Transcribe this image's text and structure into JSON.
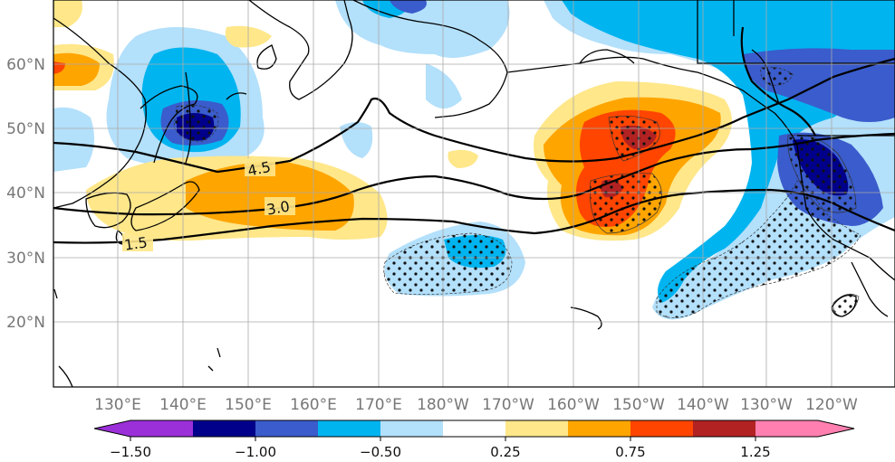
{
  "map": {
    "lon_labels": [
      "130°E",
      "140°E",
      "150°E",
      "160°E",
      "170°E",
      "180°W",
      "170°W",
      "160°W",
      "150°W",
      "140°W",
      "130°W",
      "120°W"
    ],
    "lat_labels": [
      "60°N",
      "50°N",
      "40°N",
      "30°N",
      "20°N"
    ],
    "contour_labels": [
      "4.5",
      "3.0",
      "1.5"
    ],
    "colorbar": {
      "tick_labels": [
        "−1.50",
        "−1.00",
        "−0.50",
        "0.25",
        "0.75",
        "1.25"
      ],
      "colors": [
        "#9b30d9",
        "#00008b",
        "#3a5ccc",
        "#00b4f0",
        "#b3e0fb",
        "#ffffff",
        "#ffe78a",
        "#ffa500",
        "#ff4500",
        "#b22222",
        "#ff7fb0"
      ]
    },
    "fill_colors": {
      "light_blue": "#b3e0fb",
      "blue": "#00b4f0",
      "mid_blue": "#3a5ccc",
      "dark_blue": "#00008b",
      "light_yellow": "#ffe78a",
      "orange": "#ffa500",
      "red_orange": "#ff4500",
      "dark_red": "#b22222"
    }
  }
}
